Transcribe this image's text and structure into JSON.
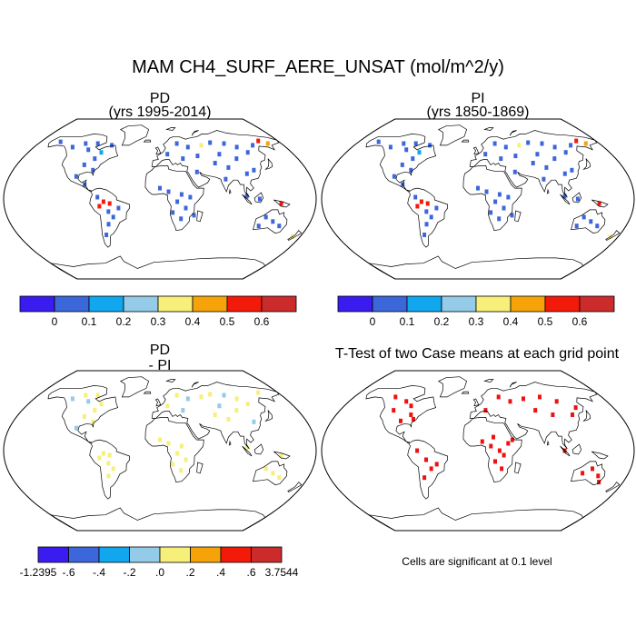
{
  "main_title": "MAM CH4_SURF_AERE_UNSAT (mol/m^2/y)",
  "note": "Cells are significant at 0.1 level",
  "colors": {
    "levels_abs": [
      "#3a1cf0",
      "#3c67db",
      "#10a7ef",
      "#93cbe8",
      "#f6ef7a",
      "#f6a30a",
      "#f41a0a",
      "#cc2b2b"
    ],
    "coast": "#000000",
    "outline": "#000000",
    "ttest_mark": "#ee1111"
  },
  "chart_data": [
    {
      "type": "heatmap",
      "panel": "PD",
      "title": "PD",
      "subtitle": "(yrs 1995-2014)",
      "projection": "robinson",
      "colorbar": {
        "labels": [
          "0",
          "0.1",
          "0.2",
          "0.3",
          "0.4",
          "0.5",
          "0.6"
        ],
        "n_colors": 8
      },
      "cells": [
        {
          "lon": -100,
          "lat": 55,
          "v": 0.05
        },
        {
          "lon": -92,
          "lat": 62,
          "v": 0.05
        },
        {
          "lon": -80,
          "lat": 52,
          "v": 0.1
        },
        {
          "lon": -70,
          "lat": 60,
          "v": 0.05
        },
        {
          "lon": -110,
          "lat": 62,
          "v": 0.05
        },
        {
          "lon": -125,
          "lat": 58,
          "v": 0.05
        },
        {
          "lon": -150,
          "lat": 64,
          "v": 0.05
        },
        {
          "lon": -85,
          "lat": 45,
          "v": 0.05
        },
        {
          "lon": -95,
          "lat": 38,
          "v": 0.05
        },
        {
          "lon": -82,
          "lat": 32,
          "v": 0.05
        },
        {
          "lon": -100,
          "lat": 25,
          "v": 0.05
        },
        {
          "lon": -88,
          "lat": 16,
          "v": 0.05
        },
        {
          "lon": -65,
          "lat": -3,
          "v": 0.55
        },
        {
          "lon": -58,
          "lat": -5,
          "v": 0.55
        },
        {
          "lon": -70,
          "lat": -8,
          "v": 0.55
        },
        {
          "lon": -60,
          "lat": -14,
          "v": 0.05
        },
        {
          "lon": -48,
          "lat": -10,
          "v": 0.05
        },
        {
          "lon": -55,
          "lat": -20,
          "v": 0.05
        },
        {
          "lon": -62,
          "lat": -28,
          "v": 0.05
        },
        {
          "lon": -68,
          "lat": -40,
          "v": 0.05
        },
        {
          "lon": -72,
          "lat": 2,
          "v": 0.05
        },
        {
          "lon": 25,
          "lat": 62,
          "v": 0.05
        },
        {
          "lon": 40,
          "lat": 58,
          "v": 0.05
        },
        {
          "lon": 60,
          "lat": 60,
          "v": 0.35
        },
        {
          "lon": 75,
          "lat": 63,
          "v": 0.05
        },
        {
          "lon": 95,
          "lat": 62,
          "v": 0.05
        },
        {
          "lon": 110,
          "lat": 58,
          "v": 0.05
        },
        {
          "lon": 120,
          "lat": 52,
          "v": 0.05
        },
        {
          "lon": 135,
          "lat": 60,
          "v": 0.05
        },
        {
          "lon": 80,
          "lat": 50,
          "v": 0.05
        },
        {
          "lon": 100,
          "lat": 45,
          "v": 0.05
        },
        {
          "lon": 50,
          "lat": 48,
          "v": 0.05
        },
        {
          "lon": 70,
          "lat": 40,
          "v": 0.05
        },
        {
          "lon": 85,
          "lat": 35,
          "v": 0.05
        },
        {
          "lon": 115,
          "lat": 32,
          "v": 0.05
        },
        {
          "lon": 105,
          "lat": 28,
          "v": 0.05
        },
        {
          "lon": 78,
          "lat": 22,
          "v": 0.05
        },
        {
          "lon": 45,
          "lat": 30,
          "v": 0.05
        },
        {
          "lon": 10,
          "lat": 50,
          "v": 0.05
        },
        {
          "lon": 30,
          "lat": 45,
          "v": 0.05
        },
        {
          "lon": 150,
          "lat": 65,
          "v": 0.55
        },
        {
          "lon": 160,
          "lat": 62,
          "v": 0.45
        },
        {
          "lon": 10,
          "lat": 8,
          "v": 0.05
        },
        {
          "lon": 25,
          "lat": 5,
          "v": 0.05
        },
        {
          "lon": 20,
          "lat": -3,
          "v": 0.05
        },
        {
          "lon": 30,
          "lat": -10,
          "v": 0.05
        },
        {
          "lon": 35,
          "lat": 2,
          "v": 0.05
        },
        {
          "lon": 15,
          "lat": -15,
          "v": 0.05
        },
        {
          "lon": 25,
          "lat": -22,
          "v": 0.05
        },
        {
          "lon": 0,
          "lat": 12,
          "v": 0.05
        },
        {
          "lon": 40,
          "lat": -18,
          "v": 0.05
        },
        {
          "lon": 100,
          "lat": 3,
          "v": 0.05
        },
        {
          "lon": 115,
          "lat": 0,
          "v": 0.05
        },
        {
          "lon": 140,
          "lat": -5,
          "v": 0.55
        },
        {
          "lon": 125,
          "lat": -20,
          "v": 0.05
        },
        {
          "lon": 135,
          "lat": -25,
          "v": 0.05
        },
        {
          "lon": 145,
          "lat": -30,
          "v": 0.05
        },
        {
          "lon": 120,
          "lat": -30,
          "v": 0.05
        },
        {
          "lon": 170,
          "lat": -42,
          "v": 0.35
        }
      ]
    },
    {
      "type": "heatmap",
      "panel": "PI",
      "title": "PI",
      "subtitle": "(yrs 1850-1869)",
      "projection": "robinson",
      "colorbar": {
        "labels": [
          "0",
          "0.1",
          "0.2",
          "0.3",
          "0.4",
          "0.5",
          "0.6"
        ],
        "n_colors": 8
      },
      "cells": [
        {
          "lon": -100,
          "lat": 55,
          "v": 0.05
        },
        {
          "lon": -92,
          "lat": 62,
          "v": 0.05
        },
        {
          "lon": -80,
          "lat": 52,
          "v": 0.1
        },
        {
          "lon": -70,
          "lat": 60,
          "v": 0.05
        },
        {
          "lon": -110,
          "lat": 62,
          "v": 0.05
        },
        {
          "lon": -125,
          "lat": 58,
          "v": 0.05
        },
        {
          "lon": -150,
          "lat": 64,
          "v": 0.05
        },
        {
          "lon": -85,
          "lat": 45,
          "v": 0.05
        },
        {
          "lon": -95,
          "lat": 38,
          "v": 0.05
        },
        {
          "lon": -82,
          "lat": 32,
          "v": 0.05
        },
        {
          "lon": -100,
          "lat": 25,
          "v": 0.05
        },
        {
          "lon": -88,
          "lat": 16,
          "v": 0.05
        },
        {
          "lon": -65,
          "lat": -3,
          "v": 0.55
        },
        {
          "lon": -58,
          "lat": -5,
          "v": 0.55
        },
        {
          "lon": -70,
          "lat": -8,
          "v": 0.55
        },
        {
          "lon": -60,
          "lat": -14,
          "v": 0.05
        },
        {
          "lon": -48,
          "lat": -10,
          "v": 0.05
        },
        {
          "lon": -55,
          "lat": -20,
          "v": 0.05
        },
        {
          "lon": -62,
          "lat": -28,
          "v": 0.05
        },
        {
          "lon": -68,
          "lat": -40,
          "v": 0.05
        },
        {
          "lon": -72,
          "lat": 2,
          "v": 0.05
        },
        {
          "lon": 25,
          "lat": 62,
          "v": 0.05
        },
        {
          "lon": 40,
          "lat": 58,
          "v": 0.05
        },
        {
          "lon": 60,
          "lat": 60,
          "v": 0.35
        },
        {
          "lon": 75,
          "lat": 63,
          "v": 0.05
        },
        {
          "lon": 95,
          "lat": 62,
          "v": 0.05
        },
        {
          "lon": 110,
          "lat": 58,
          "v": 0.05
        },
        {
          "lon": 120,
          "lat": 52,
          "v": 0.05
        },
        {
          "lon": 135,
          "lat": 60,
          "v": 0.05
        },
        {
          "lon": 80,
          "lat": 50,
          "v": 0.05
        },
        {
          "lon": 100,
          "lat": 45,
          "v": 0.05
        },
        {
          "lon": 50,
          "lat": 48,
          "v": 0.05
        },
        {
          "lon": 70,
          "lat": 40,
          "v": 0.05
        },
        {
          "lon": 85,
          "lat": 35,
          "v": 0.05
        },
        {
          "lon": 115,
          "lat": 32,
          "v": 0.05
        },
        {
          "lon": 105,
          "lat": 28,
          "v": 0.05
        },
        {
          "lon": 78,
          "lat": 22,
          "v": 0.05
        },
        {
          "lon": 45,
          "lat": 30,
          "v": 0.05
        },
        {
          "lon": 10,
          "lat": 50,
          "v": 0.05
        },
        {
          "lon": 30,
          "lat": 45,
          "v": 0.05
        },
        {
          "lon": 150,
          "lat": 65,
          "v": 0.55
        },
        {
          "lon": 160,
          "lat": 62,
          "v": 0.45
        },
        {
          "lon": 10,
          "lat": 8,
          "v": 0.05
        },
        {
          "lon": 25,
          "lat": 5,
          "v": 0.05
        },
        {
          "lon": 20,
          "lat": -3,
          "v": 0.05
        },
        {
          "lon": 30,
          "lat": -10,
          "v": 0.05
        },
        {
          "lon": 35,
          "lat": 2,
          "v": 0.05
        },
        {
          "lon": 15,
          "lat": -15,
          "v": 0.05
        },
        {
          "lon": 25,
          "lat": -22,
          "v": 0.05
        },
        {
          "lon": 0,
          "lat": 12,
          "v": 0.05
        },
        {
          "lon": 40,
          "lat": -18,
          "v": 0.05
        },
        {
          "lon": 100,
          "lat": 3,
          "v": 0.05
        },
        {
          "lon": 115,
          "lat": 0,
          "v": 0.05
        },
        {
          "lon": 140,
          "lat": -5,
          "v": 0.55
        },
        {
          "lon": 125,
          "lat": -20,
          "v": 0.05
        },
        {
          "lon": 135,
          "lat": -25,
          "v": 0.05
        },
        {
          "lon": 145,
          "lat": -30,
          "v": 0.05
        },
        {
          "lon": 120,
          "lat": -30,
          "v": 0.05
        },
        {
          "lon": 170,
          "lat": -42,
          "v": 0.35
        }
      ]
    },
    {
      "type": "heatmap",
      "panel": "PD-PI",
      "title": "PD",
      "subtitle": "- PI",
      "projection": "robinson",
      "colorbar": {
        "labels": [
          "-1.2395",
          "-.6",
          "-.4",
          "-.2",
          ".0",
          ".2",
          ".4",
          ".6",
          "3.7544"
        ],
        "n_colors": 8,
        "bounds": [
          -1.2395,
          -0.6,
          -0.4,
          -0.2,
          0.0,
          0.2,
          0.4,
          0.6,
          3.7544
        ]
      },
      "cells": [
        {
          "lon": -100,
          "lat": 55,
          "v": -0.1
        },
        {
          "lon": -92,
          "lat": 62,
          "v": 0.1
        },
        {
          "lon": -80,
          "lat": 52,
          "v": 0.1
        },
        {
          "lon": -110,
          "lat": 62,
          "v": 0.1
        },
        {
          "lon": -125,
          "lat": 58,
          "v": -0.1
        },
        {
          "lon": -85,
          "lat": 45,
          "v": 0.1
        },
        {
          "lon": -95,
          "lat": 38,
          "v": 0.1
        },
        {
          "lon": -82,
          "lat": 32,
          "v": 0.1
        },
        {
          "lon": -100,
          "lat": 25,
          "v": -0.1
        },
        {
          "lon": -65,
          "lat": -3,
          "v": 0.1
        },
        {
          "lon": -58,
          "lat": -5,
          "v": 0.1
        },
        {
          "lon": -70,
          "lat": -8,
          "v": 0.1
        },
        {
          "lon": -60,
          "lat": -14,
          "v": 0.1
        },
        {
          "lon": -55,
          "lat": -20,
          "v": 0.1
        },
        {
          "lon": -62,
          "lat": -28,
          "v": 0.1
        },
        {
          "lon": 25,
          "lat": 62,
          "v": 0.1
        },
        {
          "lon": 40,
          "lat": 58,
          "v": -0.1
        },
        {
          "lon": 60,
          "lat": 60,
          "v": 0.1
        },
        {
          "lon": 75,
          "lat": 63,
          "v": 0.1
        },
        {
          "lon": 95,
          "lat": 62,
          "v": -0.1
        },
        {
          "lon": 110,
          "lat": 58,
          "v": 0.1
        },
        {
          "lon": 120,
          "lat": 52,
          "v": 0.1
        },
        {
          "lon": 80,
          "lat": 50,
          "v": -0.1
        },
        {
          "lon": 100,
          "lat": 45,
          "v": 0.1
        },
        {
          "lon": 70,
          "lat": 40,
          "v": 0.1
        },
        {
          "lon": 85,
          "lat": 35,
          "v": 0.1
        },
        {
          "lon": 115,
          "lat": 32,
          "v": -0.1
        },
        {
          "lon": 10,
          "lat": 50,
          "v": 0.1
        },
        {
          "lon": 30,
          "lat": 45,
          "v": -0.1
        },
        {
          "lon": 150,
          "lat": 65,
          "v": 0.1
        },
        {
          "lon": 10,
          "lat": 8,
          "v": 0.1
        },
        {
          "lon": 25,
          "lat": 5,
          "v": 0.1
        },
        {
          "lon": 20,
          "lat": -3,
          "v": 0.1
        },
        {
          "lon": 30,
          "lat": -10,
          "v": 0.1
        },
        {
          "lon": 15,
          "lat": -15,
          "v": 0.1
        },
        {
          "lon": 25,
          "lat": -22,
          "v": 0.1
        },
        {
          "lon": 0,
          "lat": 12,
          "v": 0.1
        },
        {
          "lon": 100,
          "lat": 3,
          "v": 0.1
        },
        {
          "lon": 140,
          "lat": -5,
          "v": 0.1
        },
        {
          "lon": 125,
          "lat": -20,
          "v": 0.1
        },
        {
          "lon": 135,
          "lat": -25,
          "v": 0.1
        },
        {
          "lon": 145,
          "lat": -30,
          "v": 0.1
        }
      ]
    },
    {
      "type": "heatmap",
      "panel": "T-Test",
      "title": "T-Test of two Case means at each grid point",
      "projection": "robinson",
      "cells": [
        {
          "lon": -120,
          "lat": 60,
          "v": 1
        },
        {
          "lon": -100,
          "lat": 55,
          "v": 1
        },
        {
          "lon": -90,
          "lat": 50,
          "v": 1
        },
        {
          "lon": -110,
          "lat": 45,
          "v": 1
        },
        {
          "lon": -85,
          "lat": 40,
          "v": 1
        },
        {
          "lon": -95,
          "lat": 33,
          "v": 1
        },
        {
          "lon": -80,
          "lat": 35,
          "v": 1
        },
        {
          "lon": -60,
          "lat": -10,
          "v": 1
        },
        {
          "lon": -55,
          "lat": -20,
          "v": 1
        },
        {
          "lon": -48,
          "lat": -15,
          "v": 1
        },
        {
          "lon": -65,
          "lat": -30,
          "v": 1
        },
        {
          "lon": -70,
          "lat": 0,
          "v": 1
        },
        {
          "lon": 30,
          "lat": 60,
          "v": 1
        },
        {
          "lon": 45,
          "lat": 55,
          "v": 1
        },
        {
          "lon": 65,
          "lat": 58,
          "v": 1
        },
        {
          "lon": 90,
          "lat": 60,
          "v": 1
        },
        {
          "lon": 110,
          "lat": 55,
          "v": 1
        },
        {
          "lon": 75,
          "lat": 45,
          "v": 1
        },
        {
          "lon": 95,
          "lat": 40,
          "v": 1
        },
        {
          "lon": 120,
          "lat": 40,
          "v": 1
        },
        {
          "lon": 130,
          "lat": 48,
          "v": 1
        },
        {
          "lon": 10,
          "lat": 45,
          "v": 1
        },
        {
          "lon": 5,
          "lat": 10,
          "v": 1
        },
        {
          "lon": 15,
          "lat": 5,
          "v": 1
        },
        {
          "lon": 25,
          "lat": 0,
          "v": 1
        },
        {
          "lon": 30,
          "lat": -5,
          "v": 1
        },
        {
          "lon": 20,
          "lat": -12,
          "v": 1
        },
        {
          "lon": 35,
          "lat": 8,
          "v": 1
        },
        {
          "lon": 28,
          "lat": -20,
          "v": 1
        },
        {
          "lon": 18,
          "lat": 15,
          "v": 1
        },
        {
          "lon": 40,
          "lat": 12,
          "v": 1
        },
        {
          "lon": 100,
          "lat": 0,
          "v": 1
        },
        {
          "lon": 135,
          "lat": -20,
          "v": 1
        },
        {
          "lon": 145,
          "lat": -28,
          "v": 1
        },
        {
          "lon": 125,
          "lat": -25,
          "v": 1
        },
        {
          "lon": 150,
          "lat": -35,
          "v": 1
        }
      ]
    }
  ]
}
